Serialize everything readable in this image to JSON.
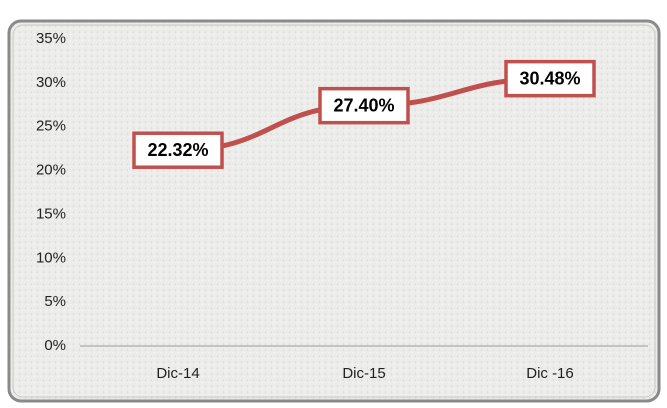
{
  "chart_data": {
    "type": "line",
    "categories": [
      "Dic-14",
      "Dic-15",
      "Dic -16"
    ],
    "series": [
      {
        "color": "#c0504d",
        "values": [
          22.32,
          27.4,
          30.48
        ],
        "value_labels": [
          "22.32%",
          "27.40%",
          "30.48%"
        ]
      }
    ],
    "ylim": [
      0,
      35
    ],
    "yticks": [
      {
        "value": 0,
        "label": "0%"
      },
      {
        "value": 5,
        "label": "5%"
      },
      {
        "value": 10,
        "label": "10%"
      },
      {
        "value": 15,
        "label": "15%"
      },
      {
        "value": 20,
        "label": "20%"
      },
      {
        "value": 25,
        "label": "25%"
      },
      {
        "value": 30,
        "label": "30%"
      },
      {
        "value": 35,
        "label": "35%"
      }
    ],
    "grid": false
  }
}
